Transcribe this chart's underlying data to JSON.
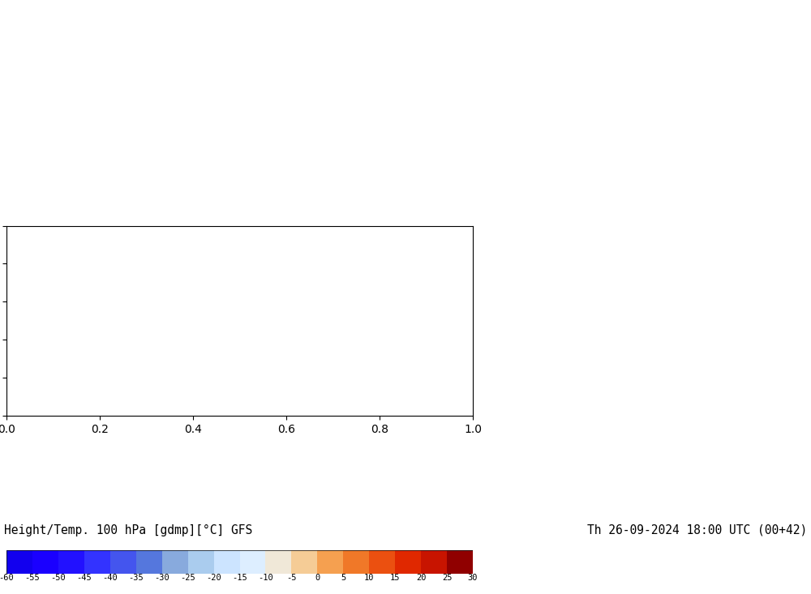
{
  "title_left": "Height/Temp. 100 hPa [gdmp][°C] GFS",
  "title_right": "Th 26-09-2024 18:00 UTC (00+42)",
  "colorbar_ticks": [
    -60,
    -55,
    -50,
    -45,
    -40,
    -35,
    -30,
    -25,
    -20,
    -15,
    -10,
    -5,
    0,
    5,
    10,
    15,
    20,
    25,
    30
  ],
  "cbar_colors": [
    "#1200ee",
    "#1a00ff",
    "#2211ff",
    "#3333ff",
    "#4455ee",
    "#5577dd",
    "#6699cc",
    "#88bbee",
    "#aaddff",
    "#cceeff",
    "#f0e8d8",
    "#f5cc96",
    "#f5a050",
    "#f07828",
    "#eb5010",
    "#e02800",
    "#c81400",
    "#b00000",
    "#800000"
  ],
  "map_background": "#1a1aff",
  "figsize": [
    10.0,
    7.33
  ],
  "dpi": 100,
  "extent": [
    25,
    155,
    0,
    65
  ],
  "contour_levels": [
    1590,
    1600,
    1610,
    1620,
    1630,
    1640,
    1650,
    1660,
    1670,
    1680
  ],
  "colorbar_vmin": -60,
  "colorbar_vmax": 30
}
